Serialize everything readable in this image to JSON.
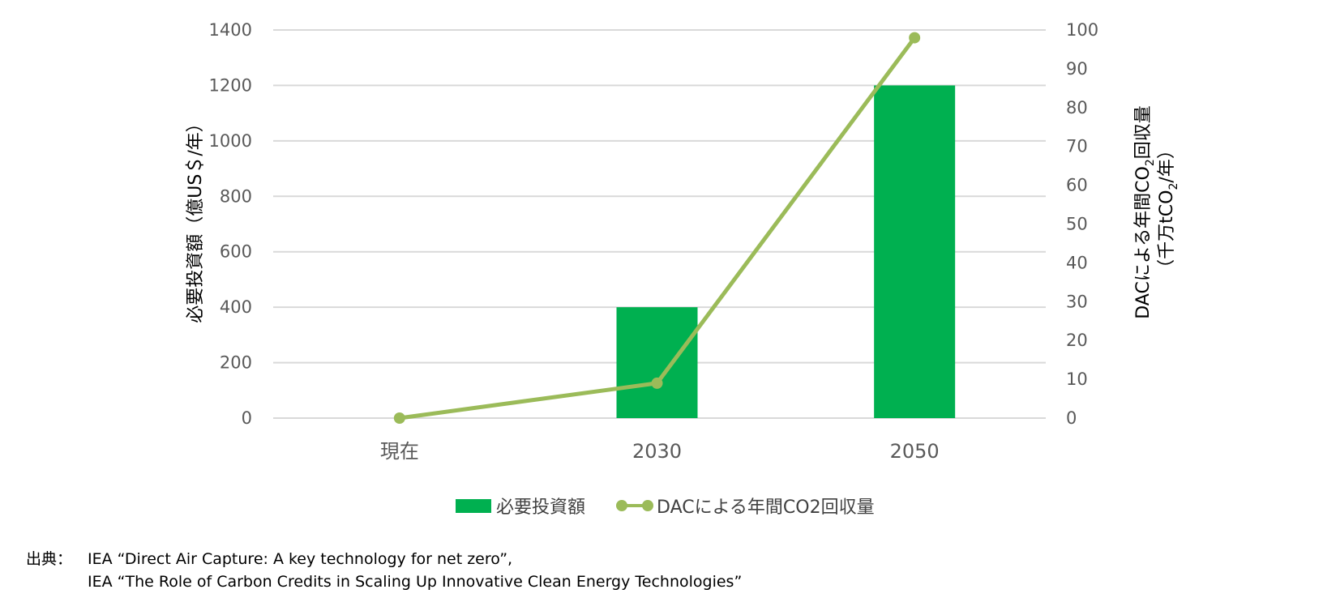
{
  "chart_data": {
    "type": "bar+line",
    "categories": [
      "現在",
      "2030",
      "2050"
    ],
    "series": [
      {
        "name": "必要投資額",
        "type": "bar",
        "axis": "left",
        "values": [
          0,
          400,
          1200
        ],
        "color": "#00B050"
      },
      {
        "name": "DACによる年間CO2回収量",
        "type": "line",
        "axis": "right",
        "values": [
          0,
          9,
          98
        ],
        "color": "#9BBB59"
      }
    ],
    "left_axis": {
      "title": "必要投資額（億US＄/年）",
      "ylim": [
        0,
        1400
      ],
      "ticks": [
        "0",
        "200",
        "400",
        "600",
        "800",
        "1000",
        "1200",
        "1400"
      ]
    },
    "right_axis": {
      "title_line1_pre": "DACによる年間CO",
      "title_line1_sub": "2",
      "title_line1_post": "回収量",
      "title_line2_pre": "（千万tCO",
      "title_line2_sub": "2",
      "title_line2_post": "/年）",
      "ylim": [
        0,
        100
      ],
      "ticks": [
        "0",
        "10",
        "20",
        "30",
        "40",
        "50",
        "60",
        "70",
        "80",
        "90",
        "100"
      ]
    },
    "grid": true,
    "legend_position": "bottom",
    "gridline_color": "#D9D9D9"
  },
  "legend": {
    "bar_label": "必要投資額",
    "line_label": "DACによる年間CO2回収量"
  },
  "source": {
    "label": "出典：",
    "line1": "IEA “Direct Air Capture: A key technology for net zero”,",
    "line2": "IEA “The Role of Carbon Credits in Scaling Up Innovative Clean Energy Technologies”"
  }
}
